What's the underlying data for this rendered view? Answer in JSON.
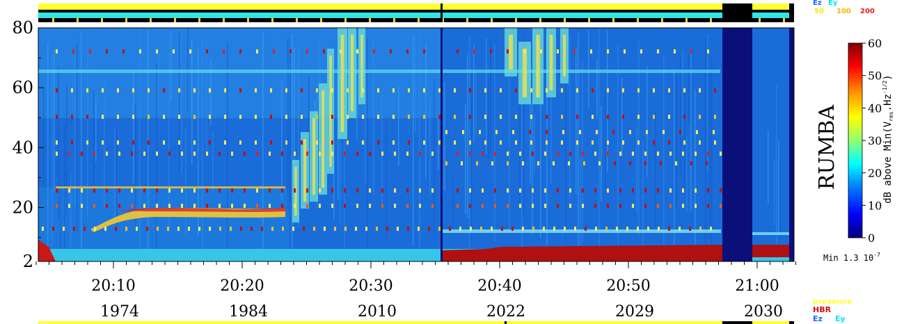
{
  "chart_data": {
    "type": "heatmap",
    "instrument": "RUMBA",
    "yaxis": {
      "range": [
        2,
        80
      ],
      "ticks": [
        80,
        60,
        40,
        20,
        2
      ]
    },
    "xaxis": {
      "ticks": [
        {
          "time": "20:10",
          "orbit": "1974"
        },
        {
          "time": "20:20",
          "orbit": "1984"
        },
        {
          "time": "20:30",
          "orbit": "2010"
        },
        {
          "time": "20:40",
          "orbit": "2022"
        },
        {
          "time": "20:50",
          "orbit": "2029"
        },
        {
          "time": "21:00",
          "orbit": "2030"
        }
      ]
    },
    "colorbar": {
      "ticks": [
        60,
        50,
        40,
        30,
        20,
        10,
        0
      ],
      "label": "dB above Min(V",
      "label_sub": "rms",
      "label_tail": ".Hz",
      "label_sup": "-1/2",
      "label_end": ")",
      "min_text": "Min 1.3 10",
      "min_exp": "-7",
      "colors": [
        "#000080",
        "#0000ff",
        "#0090ff",
        "#00ffff",
        "#90ff70",
        "#ffff00",
        "#ff9000",
        "#ff0000",
        "#800000"
      ]
    },
    "top_legend": {
      "ez": "Ez",
      "ey": "Ey",
      "values": [
        "50",
        "100",
        "200"
      ],
      "ez_color": "#1e64ff",
      "ey_color": "#00e5ff",
      "value_colors": [
        "#ffe600",
        "#ffb400",
        "#e61e1e"
      ]
    },
    "bottom_legend": {
      "presence": "presence",
      "hbr": "HBR",
      "ez": "Ez",
      "ey": "Ey",
      "presence_color": "#ffff33",
      "hbr_color": "#cc1111"
    },
    "gaps": [
      {
        "from": "20:57.7",
        "to": "21:00.1"
      },
      {
        "from": "21:02.9",
        "to": "21:03.6"
      }
    ]
  }
}
